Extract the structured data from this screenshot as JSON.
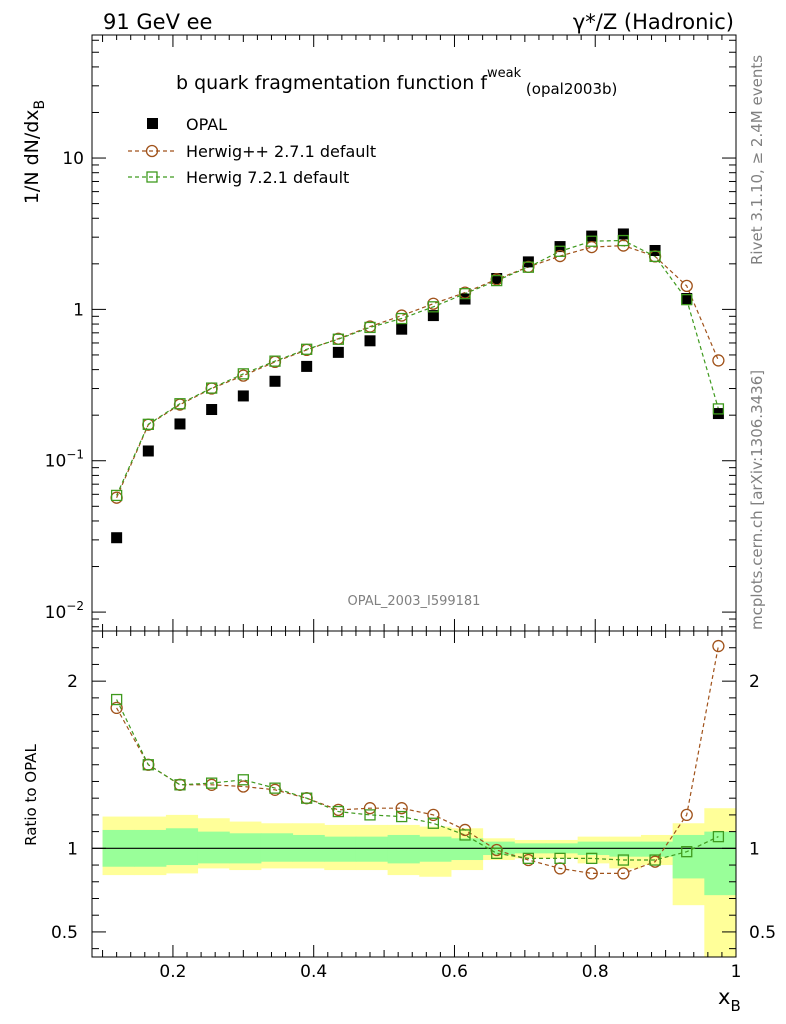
{
  "header": {
    "left": "91 GeV ee",
    "right": "γ*/Z (Hadronic)"
  },
  "side": {
    "rivet": "Rivet 3.1.10, ≥ 2.4M events",
    "mcplots": "mcplots.cern.ch [arXiv:1306.3436]"
  },
  "chart_data": {
    "type": "scatter",
    "title": {
      "main": "b quark fragmentation function f",
      "sup": "weak",
      "sub": " (opal2003b)"
    },
    "watermark": "OPAL_2003_I599181",
    "ylabel": {
      "main": "1/N dN/dx",
      "sub": "B"
    },
    "xlabel": {
      "main": "x",
      "sub": "B"
    },
    "ratio_ylabel": "Ratio to OPAL",
    "xlim": [
      0.085,
      1.0
    ],
    "ylim": [
      0.0075,
      65
    ],
    "ratio_ylim": [
      0.35,
      2.3
    ],
    "yscale": "log",
    "x_ticks": [
      "0.2",
      "0.4",
      "0.6",
      "0.8",
      "1"
    ],
    "y_ticks": [
      {
        "v": 10,
        "label": "10"
      },
      {
        "v": 1,
        "label": "1"
      },
      {
        "v": 0.1,
        "label": "10",
        "sup": "−1"
      },
      {
        "v": 0.01,
        "label": "10",
        "sup": "−2"
      }
    ],
    "ratio_ticks": [
      {
        "v": 2,
        "label": "2"
      },
      {
        "v": 1,
        "label": "1"
      },
      {
        "v": 0.5,
        "label": "0.5"
      }
    ],
    "legend": [
      {
        "label": "OPAL",
        "marker": "square-filled",
        "color": "#000000"
      },
      {
        "label": "Herwig++ 2.7.1 default",
        "marker": "circle-open",
        "color": "#a0521a"
      },
      {
        "label": "Herwig 7.2.1 default",
        "marker": "square-open",
        "color": "#3f9a1e"
      }
    ],
    "x": [
      0.12,
      0.165,
      0.21,
      0.255,
      0.3,
      0.345,
      0.39,
      0.435,
      0.48,
      0.525,
      0.57,
      0.615,
      0.66,
      0.705,
      0.75,
      0.795,
      0.84,
      0.885,
      0.93,
      0.975
    ],
    "bin_edges": [
      0.1,
      0.145,
      0.19,
      0.235,
      0.28,
      0.325,
      0.37,
      0.415,
      0.46,
      0.505,
      0.55,
      0.595,
      0.64,
      0.685,
      0.73,
      0.775,
      0.82,
      0.865,
      0.91,
      0.955,
      1.0
    ],
    "series": [
      {
        "name": "OPAL",
        "values": [
          0.031,
          0.116,
          0.175,
          0.218,
          0.268,
          0.335,
          0.42,
          0.52,
          0.62,
          0.74,
          0.91,
          1.17,
          1.6,
          2.06,
          2.6,
          3.05,
          3.15,
          2.45,
          1.18,
          0.205
        ]
      },
      {
        "name": "Herwig++ 2.7.1 default",
        "values": [
          0.057,
          0.173,
          0.235,
          0.3,
          0.365,
          0.45,
          0.54,
          0.64,
          0.77,
          0.91,
          1.09,
          1.29,
          1.58,
          1.91,
          2.25,
          2.58,
          2.64,
          2.24,
          1.43,
          0.46
        ]
      },
      {
        "name": "Herwig 7.2.1 default",
        "values": [
          0.059,
          0.174,
          0.238,
          0.302,
          0.375,
          0.455,
          0.545,
          0.635,
          0.76,
          0.87,
          1.04,
          1.27,
          1.55,
          1.9,
          2.42,
          2.82,
          2.85,
          2.24,
          1.16,
          0.22
        ]
      }
    ],
    "ratio_series": [
      {
        "name": "Herwig++ 2.7.1 default",
        "values": [
          1.84,
          1.5,
          1.38,
          1.38,
          1.37,
          1.35,
          1.3,
          1.23,
          1.24,
          1.24,
          1.2,
          1.11,
          0.99,
          0.93,
          0.88,
          0.85,
          0.85,
          0.92,
          1.2,
          2.21
        ]
      },
      {
        "name": "Herwig 7.2.1 default",
        "values": [
          1.89,
          1.5,
          1.38,
          1.39,
          1.41,
          1.36,
          1.3,
          1.22,
          1.2,
          1.19,
          1.15,
          1.08,
          0.97,
          0.94,
          0.94,
          0.94,
          0.93,
          0.93,
          0.98,
          1.07
        ]
      }
    ],
    "ratio_band_green": [
      [
        0.89,
        1.11
      ],
      [
        0.89,
        1.11
      ],
      [
        0.9,
        1.12
      ],
      [
        0.91,
        1.1
      ],
      [
        0.91,
        1.09
      ],
      [
        0.92,
        1.09
      ],
      [
        0.92,
        1.08
      ],
      [
        0.92,
        1.07
      ],
      [
        0.92,
        1.07
      ],
      [
        0.91,
        1.08
      ],
      [
        0.92,
        1.07
      ],
      [
        0.93,
        1.06
      ],
      [
        0.96,
        1.04
      ],
      [
        0.97,
        1.03
      ],
      [
        0.97,
        1.03
      ],
      [
        0.96,
        1.04
      ],
      [
        0.95,
        1.04
      ],
      [
        0.95,
        1.04
      ],
      [
        0.82,
        1.08
      ],
      [
        0.72,
        1.1
      ]
    ],
    "ratio_band_yellow": [
      [
        0.84,
        1.19
      ],
      [
        0.84,
        1.19
      ],
      [
        0.85,
        1.2
      ],
      [
        0.88,
        1.18
      ],
      [
        0.87,
        1.16
      ],
      [
        0.88,
        1.15
      ],
      [
        0.88,
        1.15
      ],
      [
        0.87,
        1.14
      ],
      [
        0.87,
        1.14
      ],
      [
        0.84,
        1.14
      ],
      [
        0.83,
        1.13
      ],
      [
        0.87,
        1.12
      ],
      [
        0.93,
        1.06
      ],
      [
        0.94,
        1.05
      ],
      [
        0.94,
        1.05
      ],
      [
        0.91,
        1.07
      ],
      [
        0.88,
        1.07
      ],
      [
        0.9,
        1.08
      ],
      [
        0.66,
        1.15
      ],
      [
        0.35,
        1.24
      ]
    ]
  }
}
